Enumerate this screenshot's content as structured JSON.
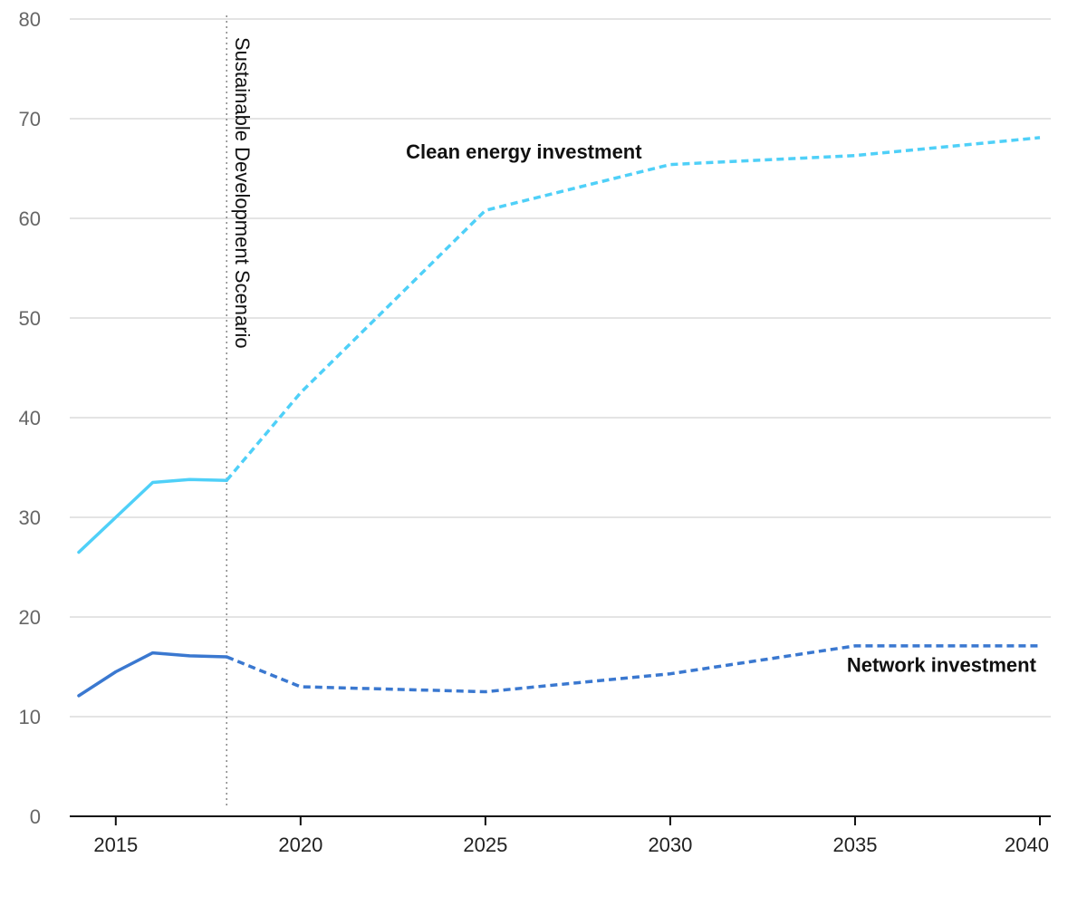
{
  "chart_data": {
    "type": "line",
    "x_ticks": [
      2015,
      2020,
      2025,
      2030,
      2035,
      2040
    ],
    "y_ticks": [
      0,
      10,
      20,
      30,
      40,
      50,
      60,
      70,
      80
    ],
    "xlim": [
      2014,
      2040
    ],
    "ylim": [
      0,
      80
    ],
    "grid": true,
    "vertical_marker": {
      "x": 2018,
      "label": "Sustainable Development Scenario"
    },
    "series": [
      {
        "name": "Clean energy investment",
        "color": "#4fd0f8",
        "historical": [
          {
            "x": 2014,
            "y": 26.5
          },
          {
            "x": 2015,
            "y": 30.0
          },
          {
            "x": 2016,
            "y": 33.5
          },
          {
            "x": 2017,
            "y": 33.8
          },
          {
            "x": 2018,
            "y": 33.7
          }
        ],
        "projected": [
          {
            "x": 2018,
            "y": 33.7
          },
          {
            "x": 2020,
            "y": 42.5
          },
          {
            "x": 2025,
            "y": 60.8
          },
          {
            "x": 2030,
            "y": 65.4
          },
          {
            "x": 2035,
            "y": 66.3
          },
          {
            "x": 2040,
            "y": 68.1
          }
        ]
      },
      {
        "name": "Network investment",
        "color": "#3a78d0",
        "historical": [
          {
            "x": 2014,
            "y": 12.1
          },
          {
            "x": 2015,
            "y": 14.5
          },
          {
            "x": 2016,
            "y": 16.4
          },
          {
            "x": 2017,
            "y": 16.1
          },
          {
            "x": 2018,
            "y": 16.0
          }
        ],
        "projected": [
          {
            "x": 2018,
            "y": 16.0
          },
          {
            "x": 2020,
            "y": 13.0
          },
          {
            "x": 2025,
            "y": 12.5
          },
          {
            "x": 2030,
            "y": 14.3
          },
          {
            "x": 2035,
            "y": 17.1
          },
          {
            "x": 2040,
            "y": 17.1
          }
        ]
      }
    ]
  }
}
